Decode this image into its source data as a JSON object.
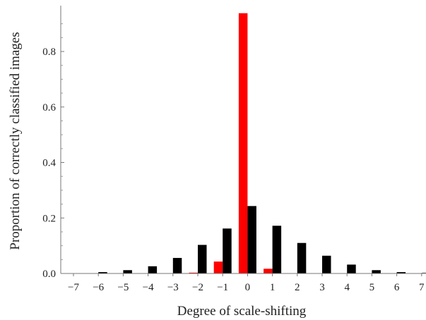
{
  "chart_data": {
    "type": "bar",
    "xlabel": "Degree of scale-shifting",
    "ylabel": "Proportion of correctly classified images",
    "categories": [
      "−7",
      "−6",
      "−5",
      "−4",
      "−3",
      "−2",
      "−1",
      "0",
      "1",
      "2",
      "3",
      "4",
      "5",
      "6",
      "7"
    ],
    "ylim": [
      0,
      0.95
    ],
    "yticks": [
      "0.0",
      "0.2",
      "0.4",
      "0.6",
      "0.8"
    ],
    "ytick_values": [
      0,
      0.2,
      0.4,
      0.6,
      0.8
    ],
    "grid": false,
    "series": [
      {
        "color": "#ff0000",
        "values": [
          0,
          0,
          0,
          0,
          0,
          0.003,
          0.043,
          0.938,
          0.017,
          0,
          0,
          0,
          0,
          0,
          0
        ]
      },
      {
        "color": "#000000",
        "values": [
          0.001,
          0.005,
          0.012,
          0.026,
          0.056,
          0.103,
          0.162,
          0.243,
          0.172,
          0.11,
          0.064,
          0.032,
          0.012,
          0.005,
          0.002
        ]
      }
    ]
  }
}
